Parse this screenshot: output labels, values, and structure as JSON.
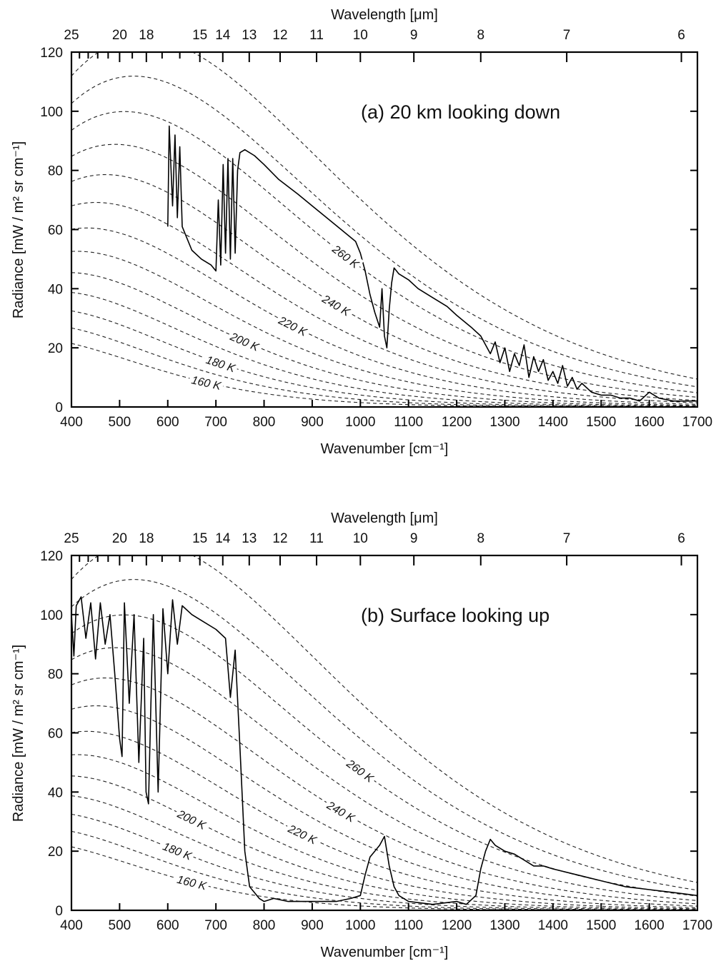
{
  "chart_data": [
    {
      "type": "line",
      "title": "(a)  20 km looking down",
      "xlabel": "Wavenumber [cm⁻¹]",
      "ylabel": "Radiance [mW / m² sr cm⁻¹]",
      "top_xlabel": "Wavelength [μm]",
      "xlim": [
        400,
        1700
      ],
      "ylim": [
        0,
        120
      ],
      "x_ticks": [
        400,
        500,
        600,
        700,
        800,
        900,
        1000,
        1100,
        1200,
        1300,
        1400,
        1500,
        1600,
        1700
      ],
      "y_ticks": [
        0,
        20,
        40,
        60,
        80,
        100,
        120
      ],
      "top_ticks": [
        25,
        20,
        18,
        15,
        14,
        13,
        12,
        11,
        10,
        9,
        8,
        7,
        6
      ],
      "grid": false,
      "isotherms_K": [
        160,
        170,
        180,
        190,
        200,
        210,
        220,
        230,
        240,
        250,
        260,
        270,
        280
      ],
      "isotherm_labels": [
        "160 K",
        "180 K",
        "200 K",
        "220 K",
        "240 K",
        "260 K"
      ],
      "series": [
        {
          "x": [
            600,
            603,
            610,
            615,
            620,
            625,
            630,
            650,
            670,
            690,
            700,
            705,
            710,
            715,
            720,
            725,
            730,
            735,
            740,
            745,
            750,
            760,
            780,
            800,
            830,
            870,
            900,
            930,
            960,
            990,
            1000,
            1010,
            1020,
            1030,
            1040,
            1045,
            1050,
            1055,
            1060,
            1065,
            1070,
            1080,
            1100,
            1120,
            1150,
            1180,
            1200,
            1230,
            1250,
            1260,
            1270,
            1280,
            1290,
            1300,
            1310,
            1320,
            1330,
            1340,
            1350,
            1360,
            1370,
            1380,
            1390,
            1400,
            1410,
            1420,
            1430,
            1440,
            1450,
            1460,
            1480,
            1500,
            1520,
            1540,
            1560,
            1580,
            1600,
            1620,
            1650,
            1680,
            1700
          ],
          "y": [
            61,
            95,
            68,
            92,
            64,
            88,
            61,
            53,
            50,
            48,
            46,
            70,
            48,
            82,
            52,
            84,
            50,
            84,
            52,
            80,
            86,
            87,
            85,
            82,
            77,
            72,
            68,
            64,
            60,
            56,
            52,
            46,
            38,
            32,
            27,
            40,
            24,
            20,
            33,
            42,
            47,
            45,
            43,
            40,
            37,
            34,
            31,
            27,
            24,
            21,
            18,
            22,
            15,
            20,
            12,
            18,
            14,
            21,
            10,
            17,
            12,
            16,
            9,
            12,
            8,
            14,
            7,
            10,
            6,
            8,
            5,
            4,
            4,
            3,
            3,
            2,
            5,
            3,
            2,
            2,
            2
          ]
        }
      ]
    },
    {
      "type": "line",
      "title": "(b) Surface looking up",
      "xlabel": "Wavenumber [cm⁻¹]",
      "ylabel": "Radiance [mW / m² sr cm⁻¹]",
      "top_xlabel": "Wavelength [μm]",
      "xlim": [
        400,
        1700
      ],
      "ylim": [
        0,
        120
      ],
      "x_ticks": [
        400,
        500,
        600,
        700,
        800,
        900,
        1000,
        1100,
        1200,
        1300,
        1400,
        1500,
        1600,
        1700
      ],
      "y_ticks": [
        0,
        20,
        40,
        60,
        80,
        100,
        120
      ],
      "top_ticks": [
        25,
        20,
        18,
        15,
        14,
        13,
        12,
        11,
        10,
        9,
        8,
        7,
        6
      ],
      "grid": false,
      "isotherms_K": [
        160,
        170,
        180,
        190,
        200,
        210,
        220,
        230,
        240,
        250,
        260,
        270,
        280
      ],
      "isotherm_labels": [
        "160 K",
        "180 K",
        "200 K",
        "220 K",
        "240 K",
        "260 K"
      ],
      "series": [
        {
          "x": [
            400,
            405,
            410,
            420,
            430,
            440,
            450,
            460,
            470,
            480,
            490,
            500,
            505,
            510,
            520,
            530,
            540,
            550,
            555,
            560,
            565,
            570,
            580,
            590,
            600,
            610,
            620,
            630,
            650,
            670,
            700,
            720,
            730,
            740,
            750,
            760,
            770,
            780,
            790,
            800,
            820,
            850,
            900,
            950,
            980,
            1000,
            1010,
            1020,
            1030,
            1040,
            1050,
            1060,
            1070,
            1080,
            1100,
            1150,
            1200,
            1220,
            1240,
            1250,
            1260,
            1270,
            1280,
            1300,
            1320,
            1340,
            1360,
            1380,
            1400,
            1450,
            1500,
            1550,
            1600,
            1650,
            1700
          ],
          "y": [
            100,
            86,
            103,
            106,
            92,
            104,
            85,
            104,
            90,
            100,
            80,
            58,
            52,
            104,
            70,
            100,
            50,
            92,
            40,
            36,
            70,
            100,
            40,
            102,
            80,
            105,
            90,
            103,
            100,
            98,
            95,
            92,
            72,
            88,
            55,
            20,
            8,
            6,
            4,
            3,
            4,
            3,
            3,
            3,
            4,
            5,
            12,
            18,
            20,
            22,
            25,
            15,
            8,
            5,
            3,
            2,
            3,
            2,
            5,
            14,
            20,
            24,
            22,
            20,
            19,
            17,
            15,
            15,
            14,
            12,
            10,
            8,
            7,
            6,
            5
          ]
        }
      ]
    }
  ]
}
